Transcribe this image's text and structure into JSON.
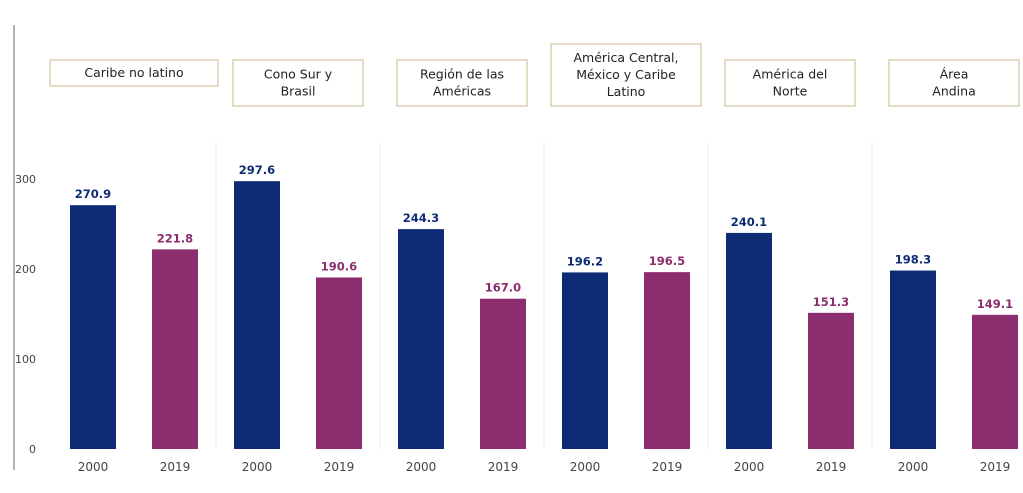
{
  "chart_data": {
    "type": "bar",
    "title": "",
    "xlabel": "",
    "ylabel": "",
    "ylim": [
      0,
      330
    ],
    "yticks": [
      0,
      100,
      200,
      300
    ],
    "grid": "vertical separators between groups",
    "colors": {
      "2000": "#0e2c75",
      "2019": "#8b2d6e"
    },
    "groups": [
      {
        "label_lines": [
          "Caribe no latino"
        ],
        "bars": [
          {
            "year": "2000",
            "value": 270.9
          },
          {
            "year": "2019",
            "value": 221.8
          }
        ]
      },
      {
        "label_lines": [
          "Cono Sur y",
          "Brasil"
        ],
        "bars": [
          {
            "year": "2000",
            "value": 297.6
          },
          {
            "year": "2019",
            "value": 190.6
          }
        ]
      },
      {
        "label_lines": [
          "Región de las",
          "Américas"
        ],
        "bars": [
          {
            "year": "2000",
            "value": 244.3
          },
          {
            "year": "2019",
            "value": 167.0
          }
        ]
      },
      {
        "label_lines": [
          "América Central,",
          "México y Caribe",
          "Latino"
        ],
        "bars": [
          {
            "year": "2000",
            "value": 196.2
          },
          {
            "year": "2019",
            "value": 196.5
          }
        ]
      },
      {
        "label_lines": [
          "América del",
          "Norte"
        ],
        "bars": [
          {
            "year": "2000",
            "value": 240.1
          },
          {
            "year": "2019",
            "value": 151.3
          }
        ]
      },
      {
        "label_lines": [
          "Área",
          "Andina"
        ],
        "bars": [
          {
            "year": "2000",
            "value": 198.3
          },
          {
            "year": "2019",
            "value": 149.1
          }
        ]
      }
    ]
  }
}
